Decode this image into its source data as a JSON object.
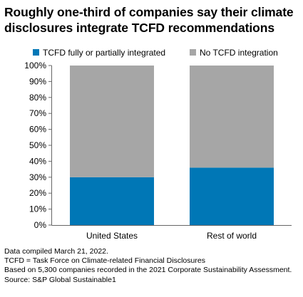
{
  "title": "Roughly one-third of companies say their climate disclosures integrate TCFD recommendations",
  "footer": {
    "line1": "Data compiled March 21, 2022.",
    "line2": "TCFD = Task Force on Climate-related Financial Disclosures",
    "line3": "Based on 5,300 companies recorded in the 2021 Corporate Sustainability Assessment.",
    "line4": "Source: S&P Global Sustainable1"
  },
  "colors": {
    "integrated": "#0077b6",
    "not_integrated": "#a6a6a6",
    "axis": "#666666"
  },
  "chart_data": {
    "type": "bar",
    "stacked": true,
    "categories": [
      "United States",
      "Rest of world"
    ],
    "series": [
      {
        "name": "TCFD fully or partially integrated",
        "values": [
          30,
          36
        ]
      },
      {
        "name": "No TCFD integration",
        "values": [
          70,
          64
        ]
      }
    ],
    "ylim": [
      0,
      100
    ],
    "yticks": [
      "0%",
      "10%",
      "20%",
      "30%",
      "40%",
      "50%",
      "60%",
      "70%",
      "80%",
      "90%",
      "100%"
    ],
    "legend_position": "top",
    "grid": false
  }
}
